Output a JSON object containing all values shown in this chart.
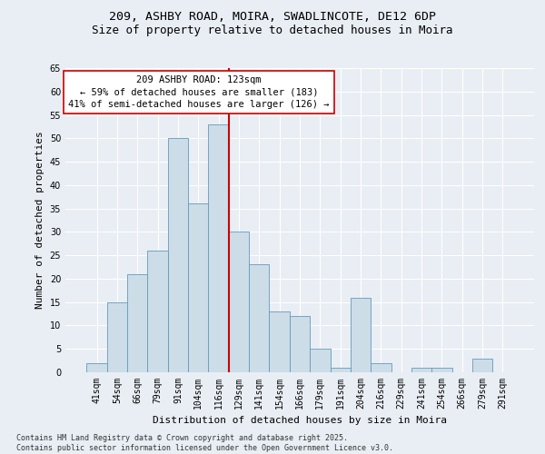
{
  "title_line1": "209, ASHBY ROAD, MOIRA, SWADLINCOTE, DE12 6DP",
  "title_line2": "Size of property relative to detached houses in Moira",
  "xlabel": "Distribution of detached houses by size in Moira",
  "ylabel": "Number of detached properties",
  "categories": [
    "41sqm",
    "54sqm",
    "66sqm",
    "79sqm",
    "91sqm",
    "104sqm",
    "116sqm",
    "129sqm",
    "141sqm",
    "154sqm",
    "166sqm",
    "179sqm",
    "191sqm",
    "204sqm",
    "216sqm",
    "229sqm",
    "241sqm",
    "254sqm",
    "266sqm",
    "279sqm",
    "291sqm"
  ],
  "values": [
    2,
    15,
    21,
    26,
    50,
    36,
    53,
    30,
    23,
    13,
    12,
    5,
    1,
    16,
    2,
    0,
    1,
    1,
    0,
    3,
    0
  ],
  "bar_color": "#ccdde8",
  "bar_edge_color": "#6699bb",
  "bar_width": 1.0,
  "annotation_line1": "209 ASHBY ROAD: 123sqm",
  "annotation_line2": "← 59% of detached houses are smaller (183)",
  "annotation_line3": "41% of semi-detached houses are larger (126) →",
  "vline_position": 6.5,
  "vline_color": "#cc0000",
  "annotation_box_facecolor": "#ffffff",
  "annotation_box_edgecolor": "#cc0000",
  "background_color": "#e8eef4",
  "plot_background": "#e8eef4",
  "ylim": [
    0,
    65
  ],
  "yticks": [
    0,
    5,
    10,
    15,
    20,
    25,
    30,
    35,
    40,
    45,
    50,
    55,
    60,
    65
  ],
  "grid_color": "#ffffff",
  "footer_line1": "Contains HM Land Registry data © Crown copyright and database right 2025.",
  "footer_line2": "Contains public sector information licensed under the Open Government Licence v3.0.",
  "title_fontsize": 9.5,
  "subtitle_fontsize": 9,
  "axis_label_fontsize": 8,
  "tick_fontsize": 7,
  "annotation_fontsize": 7.5,
  "footer_fontsize": 6
}
